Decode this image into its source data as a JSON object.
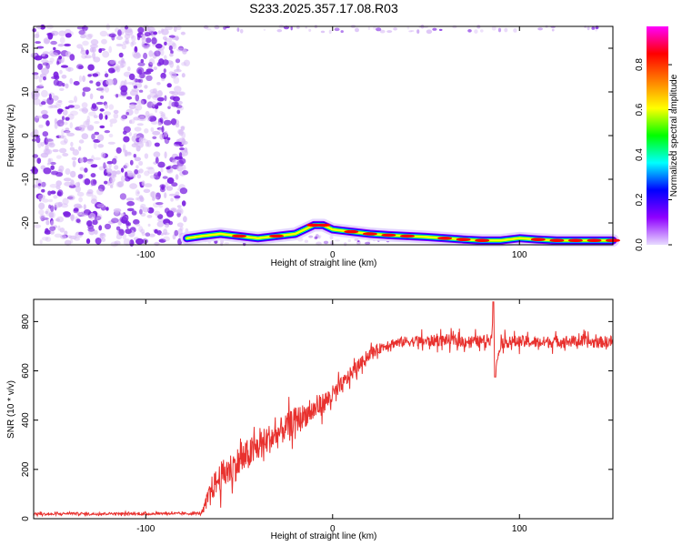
{
  "title": "S233.2025.357.17.08.R03",
  "colors": {
    "background": "#ffffff",
    "axis": "#000000",
    "snr_line": "#e8312e",
    "noise_purple_light": "#d6b8f5",
    "noise_purple_dark": "#7a1fe0",
    "colorbar_stops": [
      "#ff00ff",
      "#ff0000",
      "#ff7f00",
      "#ffff00",
      "#00ff00",
      "#00ffff",
      "#0000ff",
      "#8f00ff",
      "#e8dcff"
    ]
  },
  "chart_data": [
    {
      "id": "spectrogram",
      "type": "heatmap",
      "title": "",
      "xlabel": "Height of straight line (km)",
      "ylabel": "Frequency (Hz)",
      "xlim": [
        -160,
        150
      ],
      "ylim": [
        -25,
        25
      ],
      "xticks": [
        -100,
        0,
        100
      ],
      "xtick_labels": [
        "-100",
        "0",
        "100"
      ],
      "yticks": [
        -20,
        -10,
        0,
        10,
        20
      ],
      "ytick_labels": [
        "-20",
        "-10",
        "0",
        "10",
        "20"
      ],
      "grid": false,
      "noise_region_x": [
        -160,
        -78
      ],
      "signal_band": {
        "x": [
          -78,
          -70,
          -60,
          -50,
          -40,
          -30,
          -20,
          -15,
          -10,
          -5,
          0,
          10,
          20,
          30,
          40,
          50,
          60,
          70,
          80,
          90,
          100,
          110,
          120,
          130,
          140,
          150
        ],
        "freq": [
          -23.5,
          -23,
          -22.5,
          -23,
          -23.5,
          -23,
          -22.5,
          -21.5,
          -20.5,
          -20.5,
          -21.5,
          -22,
          -22.5,
          -22.8,
          -23,
          -23.2,
          -23.5,
          -23.8,
          -24,
          -24,
          -23.5,
          -23.8,
          -24,
          -24,
          -24,
          -24
        ],
        "amplitude": [
          0.5,
          0.8,
          0.7,
          0.85,
          0.6,
          0.9,
          0.75,
          0.8,
          0.9,
          0.85,
          0.8,
          0.95,
          0.9,
          0.95,
          0.9,
          0.8,
          0.85,
          0.9,
          0.95,
          0.6,
          0.7,
          0.9,
          0.95,
          0.9,
          0.95,
          0.9
        ]
      },
      "colorbar": {
        "label": "Normalized spectral amplitude",
        "range": [
          0,
          0.97
        ],
        "ticks": [
          0.0,
          0.2,
          0.4,
          0.6,
          0.8
        ],
        "tick_labels": [
          "0.0",
          "0.2",
          "0.4",
          "0.6",
          "0.8"
        ]
      }
    },
    {
      "id": "snr",
      "type": "line",
      "title": "",
      "xlabel": "Height of straight line (km)",
      "ylabel": "SNR (10 * v/v)",
      "xlim": [
        -160,
        150
      ],
      "ylim": [
        0,
        890
      ],
      "xticks": [
        -100,
        0,
        100
      ],
      "xtick_labels": [
        "-100",
        "0",
        "100"
      ],
      "yticks": [
        0,
        200,
        400,
        600,
        800
      ],
      "ytick_labels": [
        "0",
        "200",
        "400",
        "600",
        "800"
      ],
      "grid": false,
      "series": [
        {
          "x": [
            -160,
            -150,
            -140,
            -130,
            -120,
            -110,
            -100,
            -90,
            -80,
            -70,
            -68,
            -65,
            -60,
            -55,
            -50,
            -45,
            -40,
            -35,
            -30,
            -25,
            -20,
            -15,
            -10,
            -5,
            0,
            5,
            10,
            15,
            20,
            25,
            30,
            35,
            40,
            50,
            60,
            70,
            80,
            85,
            86,
            87,
            90,
            100,
            110,
            120,
            130,
            140,
            150
          ],
          "y": [
            20,
            18,
            22,
            19,
            21,
            20,
            19,
            22,
            20,
            22,
            60,
            120,
            170,
            200,
            230,
            260,
            290,
            320,
            340,
            370,
            400,
            420,
            440,
            470,
            500,
            540,
            590,
            630,
            670,
            690,
            710,
            715,
            720,
            720,
            725,
            720,
            720,
            730,
            860,
            600,
            715,
            720,
            715,
            720,
            720,
            715,
            720
          ],
          "noise_amplitude": [
            8,
            8,
            8,
            8,
            8,
            8,
            8,
            8,
            8,
            8,
            40,
            80,
            100,
            110,
            110,
            110,
            100,
            100,
            100,
            90,
            90,
            80,
            80,
            70,
            70,
            60,
            50,
            40,
            40,
            35,
            35,
            35,
            35,
            40,
            40,
            40,
            40,
            40,
            0,
            0,
            40,
            40,
            40,
            40,
            40,
            40,
            40
          ]
        }
      ]
    }
  ]
}
